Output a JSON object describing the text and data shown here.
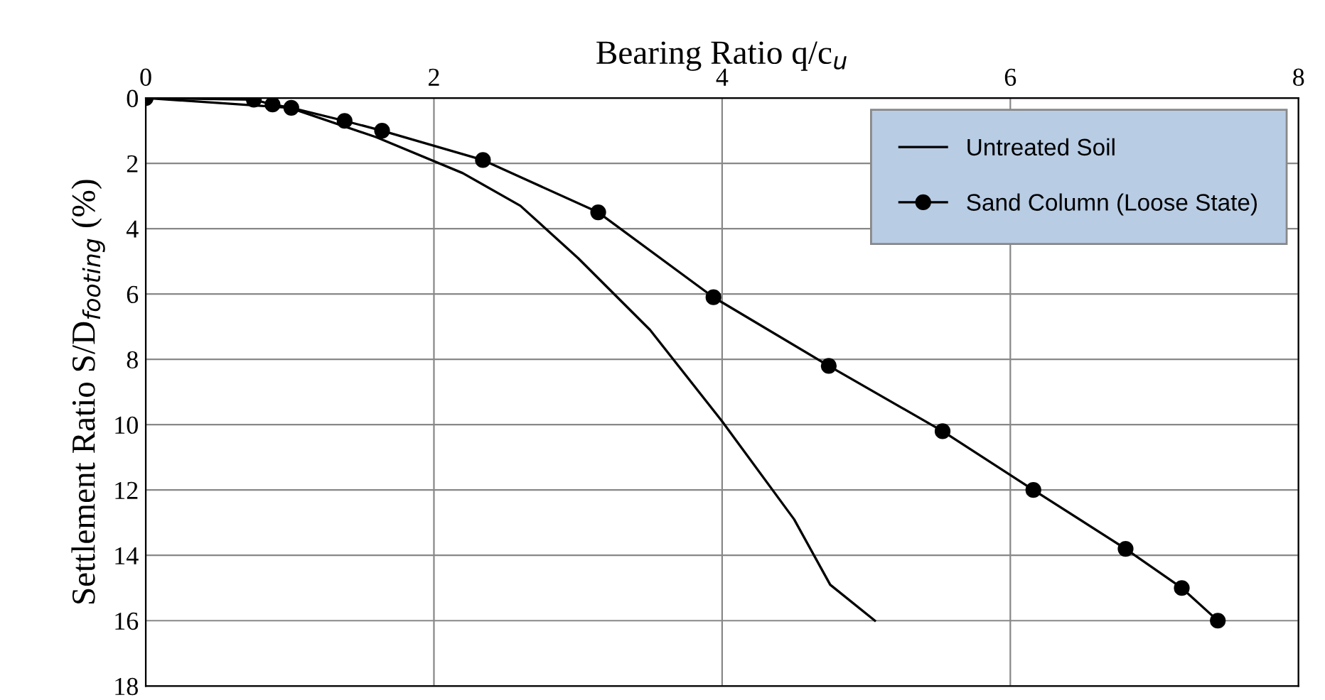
{
  "chart_data": {
    "type": "line",
    "xlabel": "Bearing Ratio q/c$_{u}$",
    "ylabel": "Settlement Ratio S/D$_{footing}$ (%)",
    "xlim": [
      0,
      8
    ],
    "xticks": [
      0,
      2,
      4,
      6,
      8
    ],
    "ylim": [
      18,
      0
    ],
    "yticks": [
      0,
      2,
      4,
      6,
      8,
      10,
      12,
      14,
      16,
      18
    ],
    "grid": true,
    "legend": "top right",
    "series": [
      {
        "name": "Untreated Soil",
        "color": "#000000",
        "marker": "none",
        "x": [
          0,
          1.0,
          1.6,
          2.2,
          2.6,
          3.0,
          3.5,
          4.0,
          4.5,
          4.75,
          5.06
        ],
        "values": [
          0,
          0.3,
          1.2,
          2.3,
          3.3,
          4.9,
          7.1,
          9.9,
          12.9,
          14.9,
          16.0
        ]
      },
      {
        "name": "Sand Column (Loose State)",
        "color": "#000000",
        "marker": "circle",
        "x": [
          0,
          0.75,
          0.88,
          1.01,
          1.38,
          1.64,
          2.34,
          3.14,
          3.94,
          4.74,
          5.53,
          6.16,
          6.8,
          7.19,
          7.44
        ],
        "values": [
          0,
          0.05,
          0.2,
          0.3,
          0.7,
          1.0,
          1.9,
          3.5,
          6.1,
          8.2,
          10.2,
          12.0,
          13.8,
          15.0,
          16.0
        ]
      }
    ]
  }
}
